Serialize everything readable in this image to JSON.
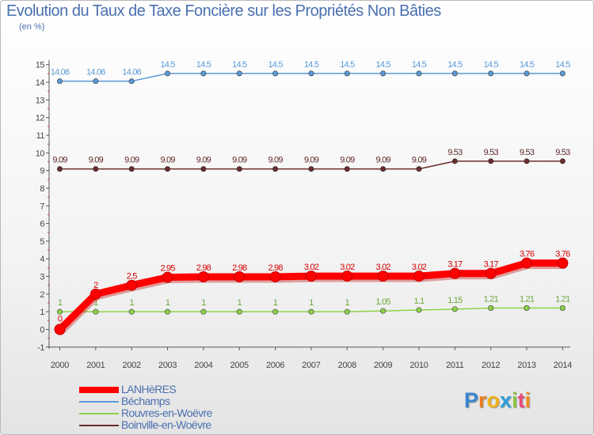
{
  "chart_data": {
    "type": "line",
    "title": "Evolution du Taux de Taxe Foncière sur les Propriétés Non Bâties",
    "unit_label": "(en %)",
    "xlabel": "",
    "ylabel": "(en %)",
    "categories": [
      "2000",
      "2001",
      "2002",
      "2003",
      "2004",
      "2005",
      "2006",
      "2007",
      "2008",
      "2009",
      "2010",
      "2011",
      "2012",
      "2013",
      "2014"
    ],
    "ylim": [
      -1,
      15
    ],
    "yticks": [
      -1,
      0,
      1,
      2,
      3,
      4,
      5,
      6,
      7,
      8,
      9,
      10,
      11,
      12,
      13,
      14,
      15
    ],
    "grid": false,
    "legend_position": "bottom-left",
    "series": [
      {
        "name": "Béchamps",
        "color": "#5b9ad6",
        "label_color": "#5b9ad6",
        "values": [
          14.06,
          14.06,
          14.06,
          14.5,
          14.5,
          14.5,
          14.5,
          14.5,
          14.5,
          14.5,
          14.5,
          14.5,
          14.5,
          14.5,
          14.5
        ],
        "labels": [
          "14.06",
          "14.06",
          "14.06",
          "14.5",
          "14.5",
          "14.5",
          "14.5",
          "14.5",
          "14.5",
          "14.5",
          "14.5",
          "14.5",
          "14.5",
          "14.5",
          "14.5"
        ]
      },
      {
        "name": "Boinville-en-Woëvre",
        "color": "#6b2c2c",
        "label_color": "#5a2a2a",
        "values": [
          9.09,
          9.09,
          9.09,
          9.09,
          9.09,
          9.09,
          9.09,
          9.09,
          9.09,
          9.09,
          9.09,
          9.53,
          9.53,
          9.53,
          9.53
        ],
        "labels": [
          "9.09",
          "9.09",
          "9.09",
          "9.09",
          "9.09",
          "9.09",
          "9.09",
          "9.09",
          "9.09",
          "9.09",
          "9.09",
          "9.53",
          "9.53",
          "9.53",
          "9.53"
        ]
      },
      {
        "name": "Rouvres-en-Woëvre",
        "color": "#8ed24a",
        "label_color": "#6aa83a",
        "values": [
          1,
          1,
          1,
          1,
          1,
          1,
          1,
          1,
          1,
          1.05,
          1.1,
          1.15,
          1.21,
          1.21,
          1.21
        ],
        "labels": [
          "1",
          "1",
          "1",
          "1",
          "1",
          "1",
          "1",
          "1",
          "1",
          "1.05",
          "1.1",
          "1.15",
          "1.21",
          "1.21",
          "1.21"
        ]
      },
      {
        "name": "LANHèRES",
        "color": "#ff0000",
        "label_color": "#d80000",
        "values": [
          0,
          2,
          2.5,
          2.95,
          2.98,
          2.98,
          2.98,
          3.02,
          3.02,
          3.02,
          3.02,
          3.17,
          3.17,
          3.76,
          3.76
        ],
        "labels": [
          "0",
          "2",
          "2.5",
          "2.95",
          "2.98",
          "2.98",
          "2.98",
          "3.02",
          "3.02",
          "3.02",
          "3.02",
          "3.17",
          "3.17",
          "3.76",
          "3.76"
        ]
      }
    ],
    "legend": [
      {
        "name": "LANHèRES",
        "color": "#ff0000",
        "thickness": "thick"
      },
      {
        "name": "Béchamps",
        "color": "#5b9ad6",
        "thickness": "thin"
      },
      {
        "name": "Rouvres-en-Woëvre",
        "color": "#8ed24a",
        "thickness": "thin"
      },
      {
        "name": "Boinville-en-Woëvre",
        "color": "#6b2c2c",
        "thickness": "thin"
      }
    ]
  },
  "logo": {
    "letters": [
      "P",
      "r",
      "o",
      "x",
      "i",
      "t",
      "i"
    ],
    "colors": [
      "#3a86d0",
      "#ec7d1e",
      "#f2b31a",
      "#2c9fd8",
      "#8cc63f",
      "#e94a7a",
      "#f28a1e"
    ]
  }
}
